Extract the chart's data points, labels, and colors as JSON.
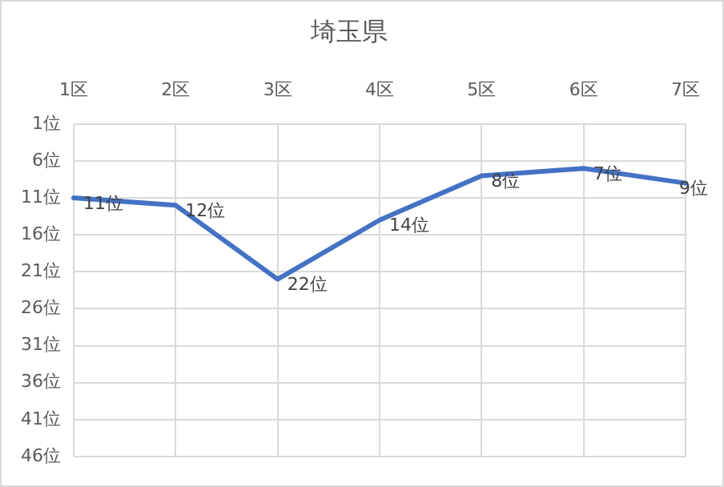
{
  "chart_data": {
    "type": "line",
    "title": "埼玉県",
    "categories": [
      "1区",
      "2区",
      "3区",
      "4区",
      "5区",
      "6区",
      "7区"
    ],
    "series": [
      {
        "color": "#4472c4",
        "values": [
          11,
          12,
          22,
          14,
          8,
          7,
          9
        ],
        "value_labels": [
          "11位",
          "12位",
          "22位",
          "14位",
          "8位",
          "7位",
          "9位"
        ]
      }
    ],
    "ylim": [
      46,
      1
    ],
    "yticks": [
      {
        "value": 1,
        "label": "1位"
      },
      {
        "value": 6,
        "label": "6位"
      },
      {
        "value": 11,
        "label": "11位"
      },
      {
        "value": 16,
        "label": "16位"
      },
      {
        "value": 21,
        "label": "21位"
      },
      {
        "value": 26,
        "label": "26位"
      },
      {
        "value": 31,
        "label": "31位"
      },
      {
        "value": 36,
        "label": "36位"
      },
      {
        "value": 41,
        "label": "41位"
      },
      {
        "value": 46,
        "label": "46位"
      }
    ],
    "grid": true,
    "legend": false,
    "marker": "none",
    "line_style": "solid"
  }
}
